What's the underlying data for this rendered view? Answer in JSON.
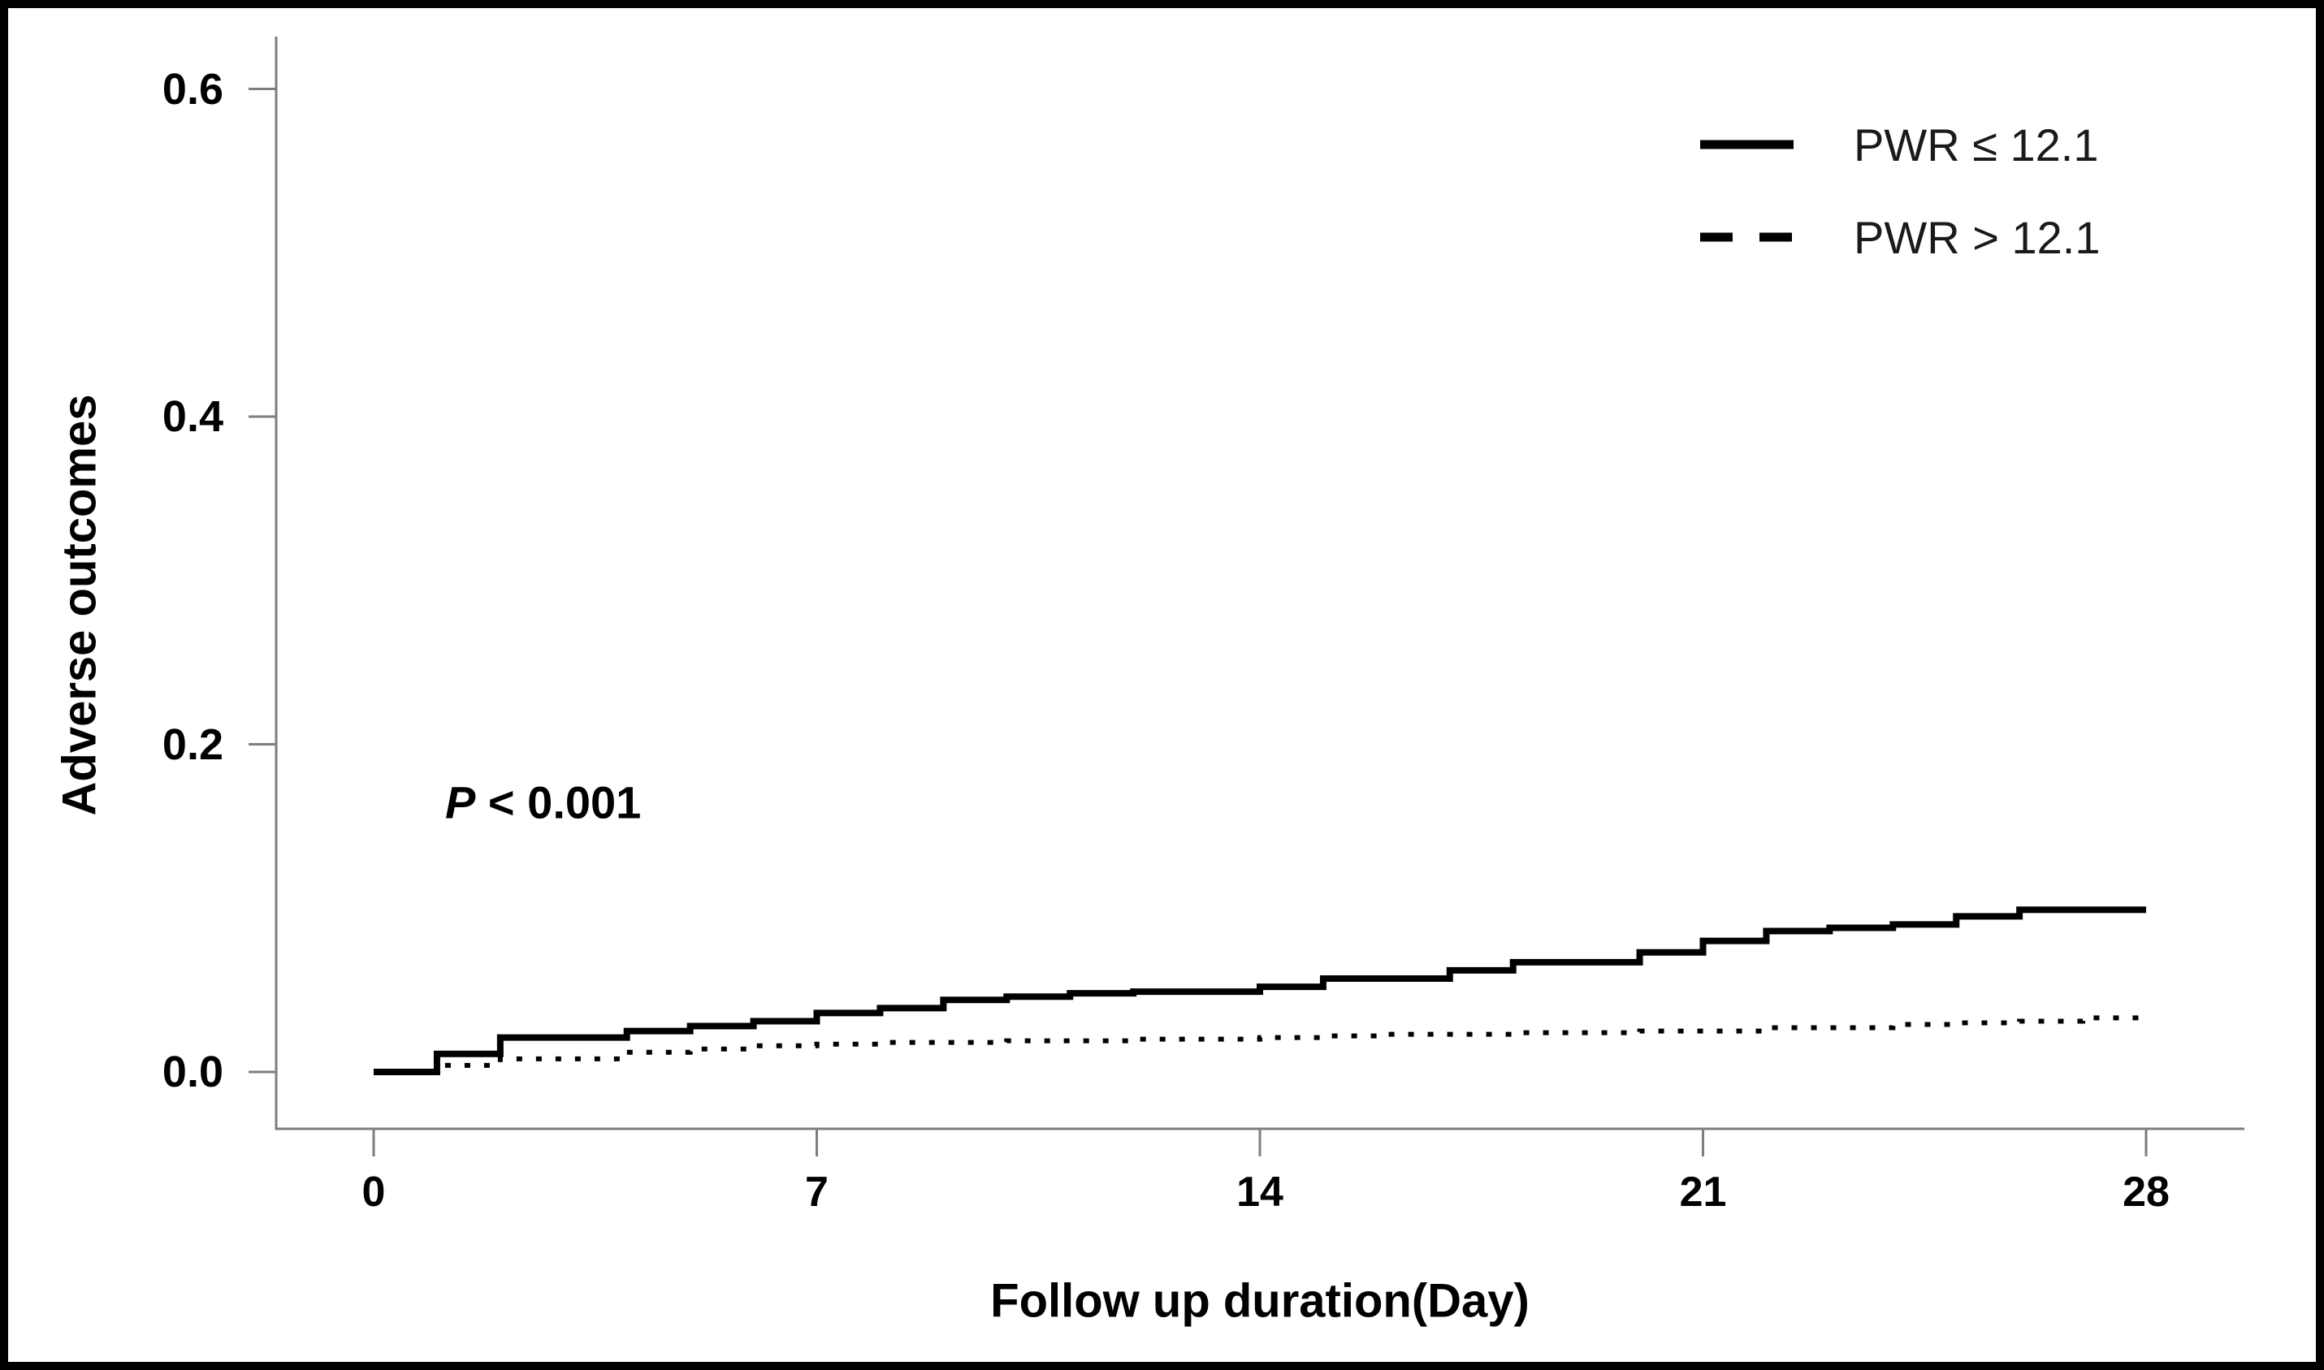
{
  "colors": {
    "background": "#ffffff",
    "frame": "#000000",
    "axis": "#7d7d7d",
    "text": "#000000",
    "series": "#000000"
  },
  "annotation": {
    "p_symbol": "P",
    "p_rest": " < 0.001"
  },
  "chart_data": {
    "type": "line",
    "subtype": "kaplan-meier-step",
    "title": "",
    "xlabel": "Follow up duration(Day)",
    "ylabel": "Adverse outcomes",
    "xlim": [
      0,
      28
    ],
    "ylim": [
      0,
      0.63
    ],
    "grid": false,
    "legend_position": "top-right",
    "annotation": "P < 0.001",
    "x_ticks": [
      {
        "label": "0",
        "value": 0
      },
      {
        "label": "7",
        "value": 7
      },
      {
        "label": "14",
        "value": 14
      },
      {
        "label": "21",
        "value": 21
      },
      {
        "label": "28",
        "value": 28
      }
    ],
    "y_ticks": [
      {
        "label": "0.0",
        "value": 0.0
      },
      {
        "label": "0.2",
        "value": 0.2
      },
      {
        "label": "0.4",
        "value": 0.4
      },
      {
        "label": "0.6",
        "value": 0.6
      }
    ],
    "series": [
      {
        "name": "PWR ≤ 12.1",
        "style": "solid",
        "color": "#000000",
        "points": [
          [
            0,
            0.0
          ],
          [
            1,
            0.011
          ],
          [
            2,
            0.021
          ],
          [
            4,
            0.025
          ],
          [
            5,
            0.028
          ],
          [
            6,
            0.031
          ],
          [
            7,
            0.036
          ],
          [
            8,
            0.039
          ],
          [
            9,
            0.044
          ],
          [
            10,
            0.046
          ],
          [
            11,
            0.048
          ],
          [
            12,
            0.049
          ],
          [
            14,
            0.052
          ],
          [
            15,
            0.057
          ],
          [
            17,
            0.062
          ],
          [
            18,
            0.067
          ],
          [
            20,
            0.073
          ],
          [
            21,
            0.08
          ],
          [
            22,
            0.086
          ],
          [
            23,
            0.088
          ],
          [
            24,
            0.09
          ],
          [
            25,
            0.095
          ],
          [
            26,
            0.099
          ],
          [
            28,
            0.099
          ]
        ]
      },
      {
        "name": "PWR > 12.1",
        "style": "dashed",
        "color": "#000000",
        "points": [
          [
            0,
            0.0
          ],
          [
            1,
            0.004
          ],
          [
            2,
            0.008
          ],
          [
            4,
            0.012
          ],
          [
            5,
            0.014
          ],
          [
            6,
            0.016
          ],
          [
            7,
            0.017
          ],
          [
            8,
            0.018
          ],
          [
            10,
            0.019
          ],
          [
            12,
            0.02
          ],
          [
            14,
            0.021
          ],
          [
            15,
            0.022
          ],
          [
            16,
            0.023
          ],
          [
            18,
            0.024
          ],
          [
            20,
            0.025
          ],
          [
            22,
            0.027
          ],
          [
            24,
            0.029
          ],
          [
            25,
            0.03
          ],
          [
            26,
            0.031
          ],
          [
            27,
            0.033
          ],
          [
            28,
            0.034
          ]
        ]
      }
    ]
  }
}
